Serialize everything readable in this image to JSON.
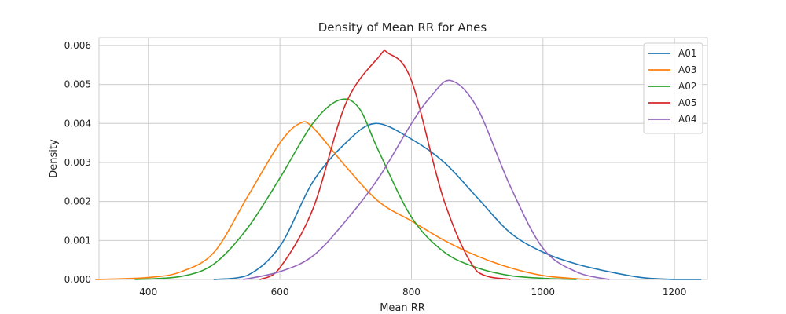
{
  "chart_data": {
    "type": "line",
    "title": "Density of Mean RR for Anes",
    "xlabel": "Mean RR",
    "ylabel": "Density",
    "xlim": [
      325,
      1250
    ],
    "ylim": [
      0,
      0.0062
    ],
    "xticks": [
      400,
      600,
      800,
      1000,
      1200
    ],
    "yticks": [
      0.0,
      0.001,
      0.002,
      0.003,
      0.004,
      0.005,
      0.006
    ],
    "xtick_labels": [
      "400",
      "600",
      "800",
      "1000",
      "1200"
    ],
    "ytick_labels": [
      "0.000",
      "0.001",
      "0.002",
      "0.003",
      "0.004",
      "0.005",
      "0.006"
    ],
    "grid": true,
    "legend_position": "top-right",
    "series": [
      {
        "name": "A01",
        "color": "#1f77b4",
        "x": [
          500,
          550,
          600,
          650,
          700,
          745,
          800,
          850,
          900,
          950,
          1000,
          1050,
          1100,
          1150,
          1200,
          1240
        ],
        "y": [
          0.0,
          0.0001,
          0.00085,
          0.0025,
          0.0035,
          0.004,
          0.0036,
          0.003,
          0.0021,
          0.0012,
          0.0007,
          0.0004,
          0.0002,
          5e-05,
          0.0,
          0.0
        ]
      },
      {
        "name": "A03",
        "color": "#ff7f0e",
        "x": [
          320,
          400,
          450,
          500,
          550,
          600,
          630,
          650,
          700,
          750,
          800,
          850,
          900,
          950,
          1000,
          1050,
          1070
        ],
        "y": [
          0.0,
          5e-05,
          0.0002,
          0.0007,
          0.0021,
          0.0035,
          0.004,
          0.0039,
          0.0029,
          0.002,
          0.0015,
          0.001,
          0.0006,
          0.0003,
          0.0001,
          2e-05,
          0.0
        ]
      },
      {
        "name": "A02",
        "color": "#2ca02c",
        "x": [
          380,
          450,
          500,
          550,
          600,
          650,
          690,
          720,
          750,
          800,
          850,
          900,
          950,
          1000,
          1050
        ],
        "y": [
          0.0,
          8e-05,
          0.0004,
          0.0013,
          0.0026,
          0.004,
          0.0046,
          0.0044,
          0.0033,
          0.0016,
          0.0007,
          0.0003,
          0.0001,
          3e-05,
          0.0
        ]
      },
      {
        "name": "A05",
        "color": "#d62728",
        "x": [
          570,
          600,
          650,
          700,
          750,
          765,
          800,
          850,
          900,
          950
        ],
        "y": [
          0.0,
          0.0003,
          0.0018,
          0.0045,
          0.0057,
          0.0058,
          0.0051,
          0.002,
          0.0002,
          0.0
        ]
      },
      {
        "name": "A04",
        "color": "#9467bd",
        "x": [
          545,
          600,
          650,
          700,
          750,
          800,
          830,
          860,
          900,
          950,
          1000,
          1050,
          1100
        ],
        "y": [
          0.0,
          0.0002,
          0.0006,
          0.0015,
          0.0026,
          0.004,
          0.0047,
          0.0051,
          0.0044,
          0.0024,
          0.0008,
          0.0002,
          0.0
        ]
      }
    ]
  }
}
